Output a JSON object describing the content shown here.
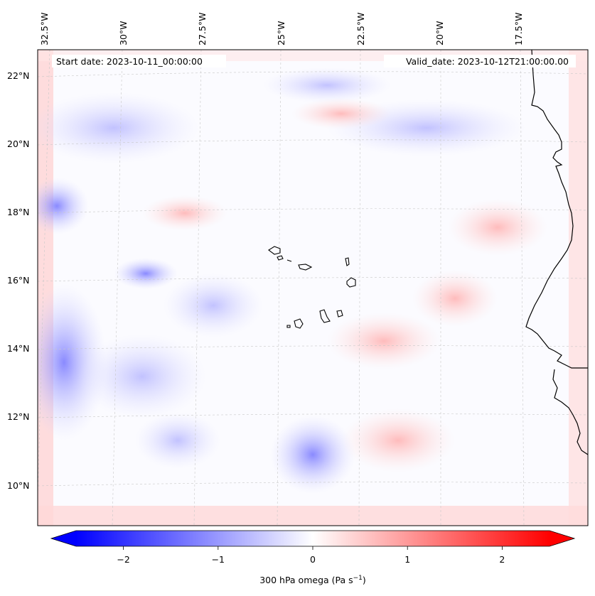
{
  "map": {
    "start_date_label": "Start date: 2023-10-11_00:00:00",
    "valid_date_label": "Valid_date: 2023-10-12T21:00:00.00",
    "lon_ticks": [
      "32.5°W",
      "30°W",
      "27.5°W",
      "25°W",
      "22.5°W",
      "20°W",
      "17.5°W"
    ],
    "lat_ticks": [
      "22°N",
      "20°N",
      "18°N",
      "16°N",
      "14°N",
      "12°N",
      "10°N"
    ],
    "colorbar": {
      "ticks": [
        "−2",
        "−1",
        "0",
        "1",
        "2"
      ],
      "tick_values": [
        -2,
        -1,
        0,
        1,
        2
      ],
      "range": [
        -2.5,
        2.5
      ],
      "label_main": "300 hPa omega (Pa s",
      "label_sup": "−1",
      "label_end": ")",
      "colormap": "bwr",
      "min_color": "#0000ff",
      "mid_color": "#ffffff",
      "max_color": "#ff0000",
      "extend": "both"
    }
  }
}
